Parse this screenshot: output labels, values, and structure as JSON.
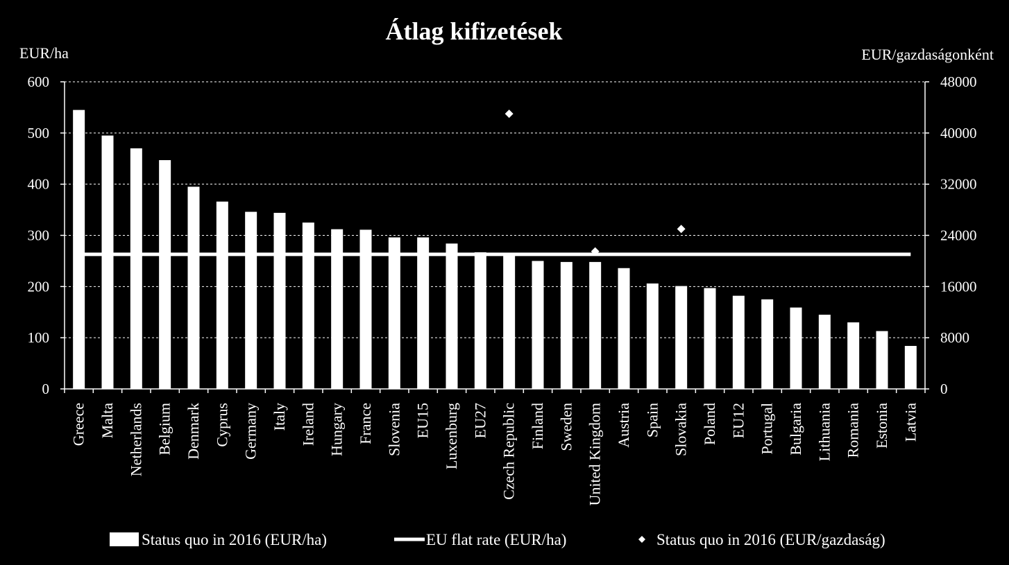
{
  "chart_data": {
    "type": "bar",
    "title": "Átlag kifizetések",
    "ylabel_left": "EUR/ha",
    "ylabel_right": "EUR/gazdaságonként",
    "ylim_left": [
      0,
      600
    ],
    "ylim_right": [
      0,
      48000
    ],
    "yticks_left": [
      "0",
      "100",
      "200",
      "300",
      "400",
      "500",
      "600"
    ],
    "yticks_right": [
      "0",
      "8000",
      "16000",
      "24000",
      "32000",
      "40000",
      "48000"
    ],
    "grid": true,
    "legend_position": "bottom",
    "categories": [
      "Greece",
      "Malta",
      "Netherlands",
      "Belgium",
      "Denmark",
      "Cyprus",
      "Germany",
      "Italy",
      "Ireland",
      "Hungary",
      "France",
      "Slovenia",
      "EU15",
      "Luxenburg",
      "EU27",
      "Czech Republic",
      "Finland",
      "Sweden",
      "United Kingdom",
      "Austria",
      "Spain",
      "Slovakia",
      "Poland",
      "EU12",
      "Portugal",
      "Bulgaria",
      "Lithuania",
      "Romania",
      "Estonia",
      "Latvia"
    ],
    "series": [
      {
        "name": "Status quo in 2016 (EUR/ha)",
        "kind": "bar",
        "axis": "left",
        "values": [
          545,
          495,
          470,
          447,
          395,
          366,
          346,
          344,
          325,
          312,
          311,
          296,
          296,
          284,
          267,
          264,
          250,
          248,
          248,
          236,
          206,
          201,
          197,
          182,
          175,
          159,
          145,
          130,
          113,
          84
        ]
      },
      {
        "name": "EU flat rate (EUR/ha)",
        "kind": "line",
        "axis": "left",
        "value": 263
      },
      {
        "name": "Status quo in 2016 (EUR/gazdaság)",
        "kind": "scatter",
        "axis": "right",
        "points": [
          {
            "category": "Czech Republic",
            "value": 43000
          },
          {
            "category": "Slovakia",
            "value": 25000
          },
          {
            "category": "United Kingdom",
            "value": 21500
          }
        ]
      }
    ]
  }
}
